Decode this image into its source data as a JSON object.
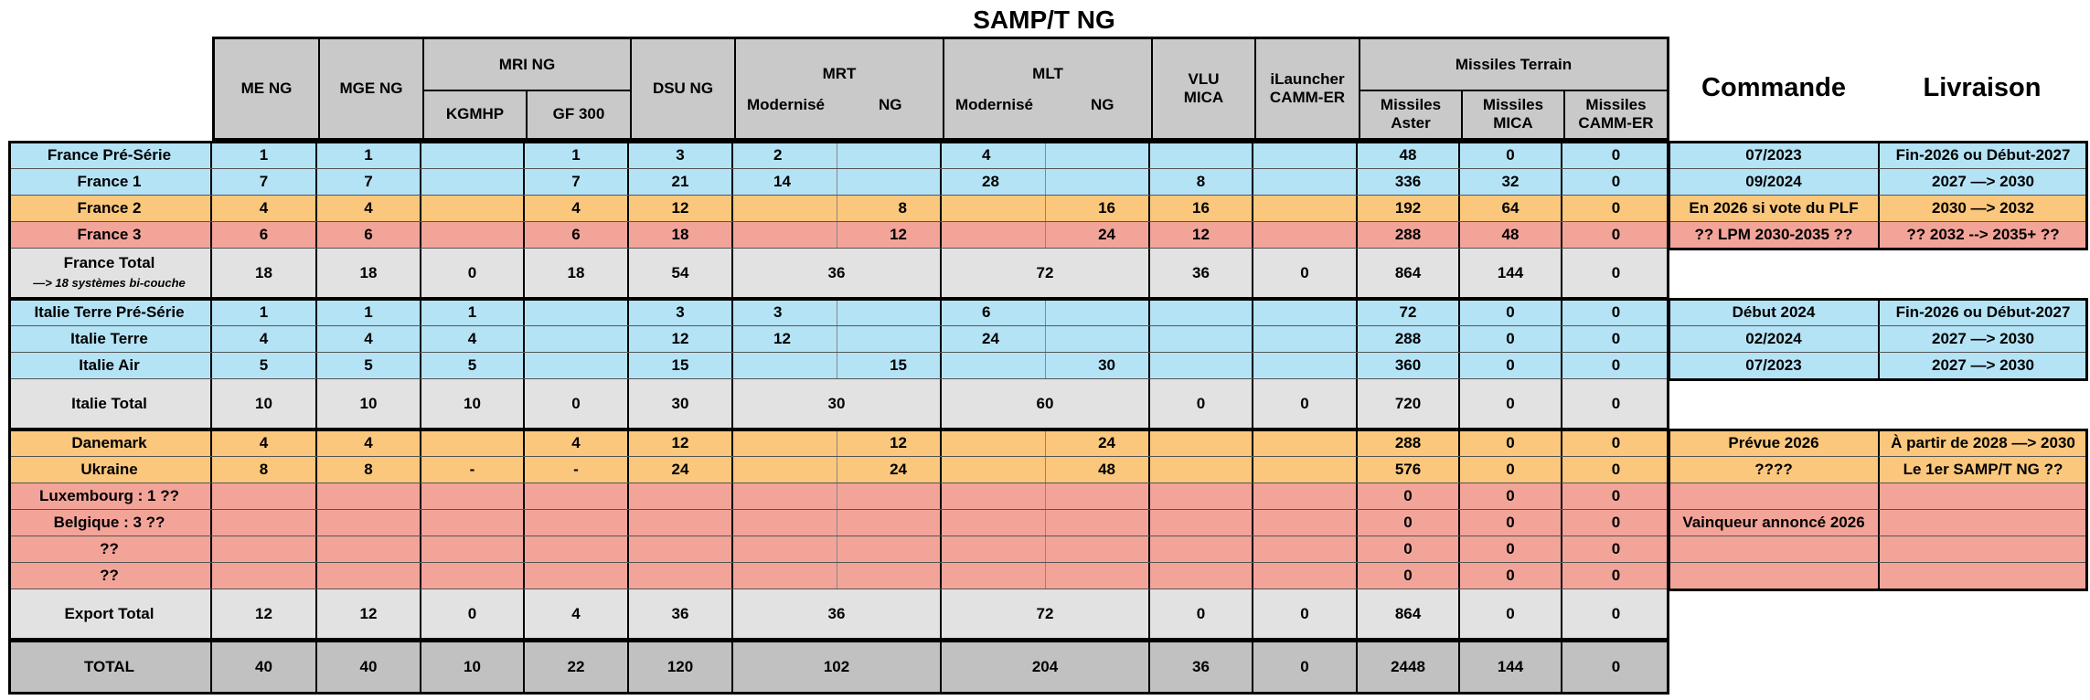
{
  "title": "SAMP/T NG",
  "header": {
    "me_ng": "ME NG",
    "mge_ng": "MGE NG",
    "mri_ng": "MRI NG",
    "kgmhp": "KGMHP",
    "gf300": "GF 300",
    "dsu_ng": "DSU NG",
    "mrt": "MRT",
    "mrt_mod": "Modernisé",
    "mrt_ng": "NG",
    "mlt": "MLT",
    "mlt_mod": "Modernisé",
    "mlt_ng": "NG",
    "vlu_mica": "VLU\nMICA",
    "ilauncher": "iLauncher\nCAMM-ER",
    "missiles_terrain": "Missiles Terrain",
    "missiles_aster": "Missiles\nAster",
    "missiles_mica": "Missiles\nMICA",
    "missiles_camm": "Missiles\nCAMM-ER",
    "commande": "Commande",
    "livraison": "Livraison"
  },
  "rows": [
    {
      "name": "France Pré-Série",
      "me": "1",
      "mge": "1",
      "kg": "",
      "gf": "1",
      "dsu": "3",
      "mrt_m": "2",
      "mrt_n": "",
      "mlt_m": "4",
      "mlt_n": "",
      "vlu": "",
      "il": "",
      "aster": "48",
      "mica": "0",
      "camm": "0",
      "cmd": "07/2023",
      "liv": "Fin-2026 ou Début-2027"
    },
    {
      "name": "France  1",
      "me": "7",
      "mge": "7",
      "kg": "",
      "gf": "7",
      "dsu": "21",
      "mrt_m": "14",
      "mrt_n": "",
      "mlt_m": "28",
      "mlt_n": "",
      "vlu": "8",
      "il": "",
      "aster": "336",
      "mica": "32",
      "camm": "0",
      "cmd": "09/2024",
      "liv": "2027 —> 2030"
    },
    {
      "name": "France  2",
      "me": "4",
      "mge": "4",
      "kg": "",
      "gf": "4",
      "dsu": "12",
      "mrt_m": "",
      "mrt_n": "8",
      "mlt_m": "",
      "mlt_n": "16",
      "vlu": "16",
      "il": "",
      "aster": "192",
      "mica": "64",
      "camm": "0",
      "cmd": "En 2026 si vote du PLF",
      "liv": "2030 —> 2032"
    },
    {
      "name": "France  3",
      "me": "6",
      "mge": "6",
      "kg": "",
      "gf": "6",
      "dsu": "18",
      "mrt_m": "",
      "mrt_n": "12",
      "mlt_m": "",
      "mlt_n": "24",
      "vlu": "12",
      "il": "",
      "aster": "288",
      "mica": "48",
      "camm": "0",
      "cmd": "??  LPM 2030-2035  ??",
      "liv": "??  2032 --> 2035+  ??"
    },
    {
      "name": "France Total",
      "sub": "—> 18 systèmes bi-couche",
      "me": "18",
      "mge": "18",
      "kg": "0",
      "gf": "18",
      "dsu": "54",
      "mrt": "36",
      "mlt": "72",
      "vlu": "36",
      "il": "0",
      "aster": "864",
      "mica": "144",
      "camm": "0",
      "cmd": "",
      "liv": ""
    },
    {
      "name": "Italie Terre Pré-Série",
      "me": "1",
      "mge": "1",
      "kg": "1",
      "gf": "",
      "dsu": "3",
      "mrt_m": "3",
      "mrt_n": "",
      "mlt_m": "6",
      "mlt_n": "",
      "vlu": "",
      "il": "",
      "aster": "72",
      "mica": "0",
      "camm": "0",
      "cmd": "Début 2024",
      "liv": "Fin-2026 ou Début-2027"
    },
    {
      "name": "Italie Terre",
      "me": "4",
      "mge": "4",
      "kg": "4",
      "gf": "",
      "dsu": "12",
      "mrt_m": "12",
      "mrt_n": "",
      "mlt_m": "24",
      "mlt_n": "",
      "vlu": "",
      "il": "",
      "aster": "288",
      "mica": "0",
      "camm": "0",
      "cmd": "02/2024",
      "liv": "2027 —> 2030"
    },
    {
      "name": "Italie Air",
      "me": "5",
      "mge": "5",
      "kg": "5",
      "gf": "",
      "dsu": "15",
      "mrt_m": "",
      "mrt_n": "15",
      "mlt_m": "",
      "mlt_n": "30",
      "vlu": "",
      "il": "",
      "aster": "360",
      "mica": "0",
      "camm": "0",
      "cmd": "07/2023",
      "liv": "2027 —> 2030"
    },
    {
      "name": "Italie Total",
      "me": "10",
      "mge": "10",
      "kg": "10",
      "gf": "0",
      "dsu": "30",
      "mrt": "30",
      "mlt": "60",
      "vlu": "0",
      "il": "0",
      "aster": "720",
      "mica": "0",
      "camm": "0",
      "cmd": "",
      "liv": ""
    },
    {
      "name": "Danemark",
      "me": "4",
      "mge": "4",
      "kg": "",
      "gf": "4",
      "dsu": "12",
      "mrt_m": "",
      "mrt_n": "12",
      "mlt_m": "",
      "mlt_n": "24",
      "vlu": "",
      "il": "",
      "aster": "288",
      "mica": "0",
      "camm": "0",
      "cmd": "Prévue 2026",
      "liv": "À partir de 2028 —> 2030"
    },
    {
      "name": "Ukraine",
      "me": "8",
      "mge": "8",
      "kg": "-",
      "gf": "-",
      "dsu": "24",
      "mrt_m": "",
      "mrt_n": "24",
      "mlt_m": "",
      "mlt_n": "48",
      "vlu": "",
      "il": "",
      "aster": "576",
      "mica": "0",
      "camm": "0",
      "cmd": "????",
      "liv": "Le 1er SAMP/T NG ??"
    },
    {
      "name": "Luxembourg :  1 ??",
      "me": "",
      "mge": "",
      "kg": "",
      "gf": "",
      "dsu": "",
      "mrt_m": "",
      "mrt_n": "",
      "mlt_m": "",
      "mlt_n": "",
      "vlu": "",
      "il": "",
      "aster": "0",
      "mica": "0",
      "camm": "0",
      "cmd": "",
      "liv": ""
    },
    {
      "name": "Belgique :  3 ??",
      "me": "",
      "mge": "",
      "kg": "",
      "gf": "",
      "dsu": "",
      "mrt_m": "",
      "mrt_n": "",
      "mlt_m": "",
      "mlt_n": "",
      "vlu": "",
      "il": "",
      "aster": "0",
      "mica": "0",
      "camm": "0",
      "cmd": "Vainqueur annoncé 2026",
      "liv": ""
    },
    {
      "name": "??",
      "me": "",
      "mge": "",
      "kg": "",
      "gf": "",
      "dsu": "",
      "mrt_m": "",
      "mrt_n": "",
      "mlt_m": "",
      "mlt_n": "",
      "vlu": "",
      "il": "",
      "aster": "0",
      "mica": "0",
      "camm": "0",
      "cmd": "",
      "liv": ""
    },
    {
      "name": "??",
      "me": "",
      "mge": "",
      "kg": "",
      "gf": "",
      "dsu": "",
      "mrt_m": "",
      "mrt_n": "",
      "mlt_m": "",
      "mlt_n": "",
      "vlu": "",
      "il": "",
      "aster": "0",
      "mica": "0",
      "camm": "0",
      "cmd": "",
      "liv": ""
    },
    {
      "name": "Export Total",
      "me": "12",
      "mge": "12",
      "kg": "0",
      "gf": "4",
      "dsu": "36",
      "mrt": "36",
      "mlt": "72",
      "vlu": "0",
      "il": "0",
      "aster": "864",
      "mica": "0",
      "camm": "0",
      "cmd": "",
      "liv": ""
    },
    {
      "name": "TOTAL",
      "me": "40",
      "mge": "40",
      "kg": "10",
      "gf": "22",
      "dsu": "120",
      "mrt": "102",
      "mlt": "204",
      "vlu": "36",
      "il": "0",
      "aster": "2448",
      "mica": "144",
      "camm": "0",
      "cmd": "",
      "liv": ""
    }
  ],
  "colors": {
    "blue": "#b5e3f6",
    "orange": "#fbc77c",
    "red": "#f3a499",
    "grey": "#e2e2e2",
    "dark_grey": "#c1c1c1",
    "header": "#c9c9c9"
  }
}
